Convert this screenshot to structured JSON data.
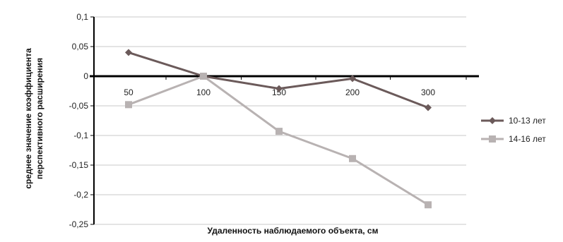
{
  "chart_data": {
    "type": "line",
    "title": "",
    "xlabel": "Удаленность наблюдаемого объекта, см",
    "ylabel_line1": "среднее значение коэффициента",
    "ylabel_line2": "перспективного расширения",
    "categories": [
      "50",
      "100",
      "150",
      "200",
      "300"
    ],
    "ylim": [
      -0.25,
      0.1
    ],
    "yticks": [
      0.1,
      0.05,
      0,
      -0.05,
      -0.1,
      -0.15,
      -0.2,
      -0.25
    ],
    "ytick_labels": [
      "0,1",
      "0,05",
      "0",
      "-0,05",
      "-0,1",
      "-0,15",
      "-0,2",
      "-0,25"
    ],
    "grid": true,
    "legend_position": "right",
    "series": [
      {
        "name": "10-13 лет",
        "values": [
          0.04,
          0.0,
          -0.021,
          -0.004,
          -0.053
        ],
        "color": "#6b5a5a",
        "marker": "diamond"
      },
      {
        "name": "14-16 лет",
        "values": [
          -0.048,
          0.0,
          -0.093,
          -0.139,
          -0.217
        ],
        "color": "#b8b2b2",
        "marker": "square"
      }
    ]
  }
}
